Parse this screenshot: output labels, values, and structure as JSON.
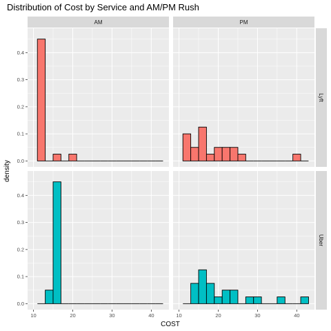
{
  "chart_data": {
    "type": "bar",
    "title": "Distribution of Cost by Service and AM/PM Rush",
    "xlabel": "COST",
    "ylabel": "density",
    "xlim": [
      8.5,
      44.5
    ],
    "ylim": [
      -0.022,
      0.49
    ],
    "x_ticks": [
      10,
      20,
      30,
      40
    ],
    "y_ticks": [
      0.0,
      0.1,
      0.2,
      0.3,
      0.4
    ],
    "y_tick_labels": [
      "0.0",
      "0.1",
      "0.2",
      "0.3",
      "0.4"
    ],
    "bin_width": 2,
    "bin_start": 11,
    "bin_count": 16,
    "grid": true,
    "facets": {
      "columns": [
        "AM",
        "PM"
      ],
      "rows": [
        "Lyft",
        "Uber"
      ]
    },
    "colors": {
      "Lyft": "#F8766D",
      "Uber": "#00BFC4",
      "panel_bg": "#EBEBEB",
      "strip_bg": "#D9D9D9",
      "grid": "#FFFFFF"
    },
    "panels": [
      {
        "row": "Lyft",
        "col": "AM",
        "values": [
          0.45,
          0,
          0.025,
          0,
          0.025,
          0,
          0,
          0,
          0,
          0,
          0,
          0,
          0,
          0,
          0,
          0
        ]
      },
      {
        "row": "Lyft",
        "col": "PM",
        "values": [
          0.1,
          0.05,
          0.125,
          0.025,
          0.05,
          0.05,
          0.05,
          0.025,
          0,
          0,
          0,
          0,
          0,
          0,
          0.025,
          0
        ]
      },
      {
        "row": "Uber",
        "col": "AM",
        "values": [
          0,
          0.05,
          0.45,
          0,
          0,
          0,
          0,
          0,
          0,
          0,
          0,
          0,
          0,
          0,
          0,
          0
        ]
      },
      {
        "row": "Uber",
        "col": "PM",
        "values": [
          0,
          0.075,
          0.125,
          0.075,
          0.025,
          0.05,
          0.05,
          0,
          0.025,
          0.025,
          0,
          0,
          0.025,
          0,
          0,
          0.025
        ]
      }
    ]
  }
}
